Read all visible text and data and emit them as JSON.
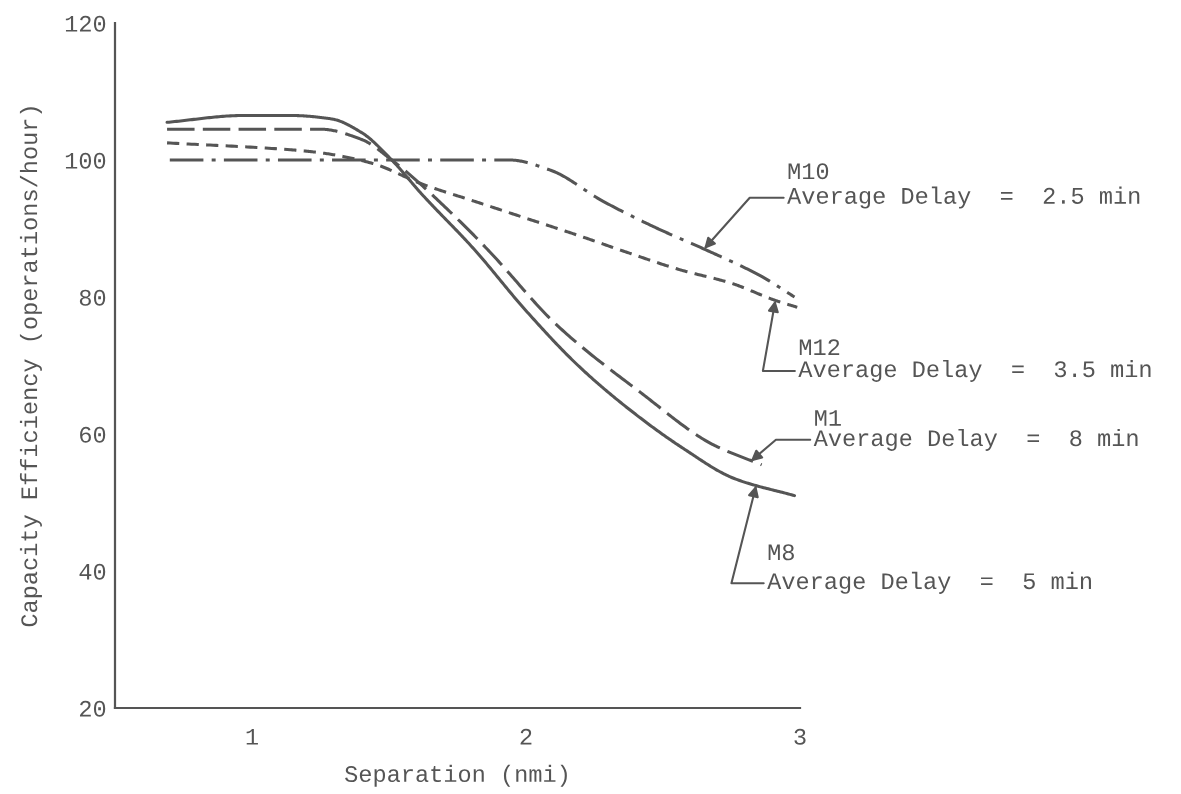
{
  "chart_data": {
    "type": "line",
    "xlabel": "Separation (nmi)",
    "ylabel": "Capacity Efficiency (operations/hour)",
    "xlim": [
      0.5,
      3
    ],
    "xticks": [
      1,
      2,
      3
    ],
    "ylim": [
      20,
      120
    ],
    "yticks": [
      20,
      40,
      60,
      80,
      100,
      120
    ],
    "series": [
      {
        "color": "#555555",
        "line_style": "dashdot",
        "x": [
          0.7,
          1.25,
          1.65,
          1.94,
          2.09,
          2.28,
          2.48,
          2.65,
          2.86,
          2.98
        ],
        "values": [
          100,
          100,
          100,
          100,
          98.5,
          94,
          90,
          87,
          83,
          80
        ]
      },
      {
        "color": "#555555",
        "line_style": "dashed",
        "x": [
          0.69,
          1.14,
          1.26,
          1.44,
          1.62,
          1.81,
          2.0,
          2.19,
          2.37,
          2.56,
          2.75,
          2.91,
          2.99
        ],
        "values": [
          102.5,
          101.5,
          101,
          99.5,
          96.5,
          94,
          91.5,
          89,
          86.5,
          84,
          82,
          79.5,
          78.5
        ]
      },
      {
        "color": "#555555",
        "line_style": "longdash",
        "x": [
          0.69,
          0.97,
          1.25,
          1.4,
          1.51,
          1.76,
          1.87,
          2.11,
          2.42,
          2.68,
          2.86
        ],
        "values": [
          104.5,
          104.5,
          104.5,
          103,
          100,
          91,
          86.5,
          76,
          66,
          58.5,
          55.5
        ]
      },
      {
        "color": "#555555",
        "line_style": "solid",
        "x": [
          0.69,
          0.97,
          1.14,
          1.29,
          1.4,
          1.51,
          1.62,
          1.81,
          2.0,
          2.19,
          2.38,
          2.57,
          2.76,
          2.98
        ],
        "values": [
          105.5,
          106.5,
          106.5,
          106,
          104,
          100,
          95,
          87,
          78,
          70,
          63.5,
          58,
          53.5,
          51
        ]
      }
    ],
    "annotations": [
      {
        "text": "M10\nAverage Delay  =  2.5 min",
        "x": 2.65,
        "y": 87
      },
      {
        "text": "M12\nAverage Delay  =  3.5 min",
        "x": 2.91,
        "y": 79.5
      },
      {
        "text": "M1\nAverage Delay  =  8 min",
        "x": 2.82,
        "y": 56
      },
      {
        "text": "M8\nAverage Delay  =  5 min",
        "x": 2.84,
        "y": 52.5
      }
    ]
  }
}
